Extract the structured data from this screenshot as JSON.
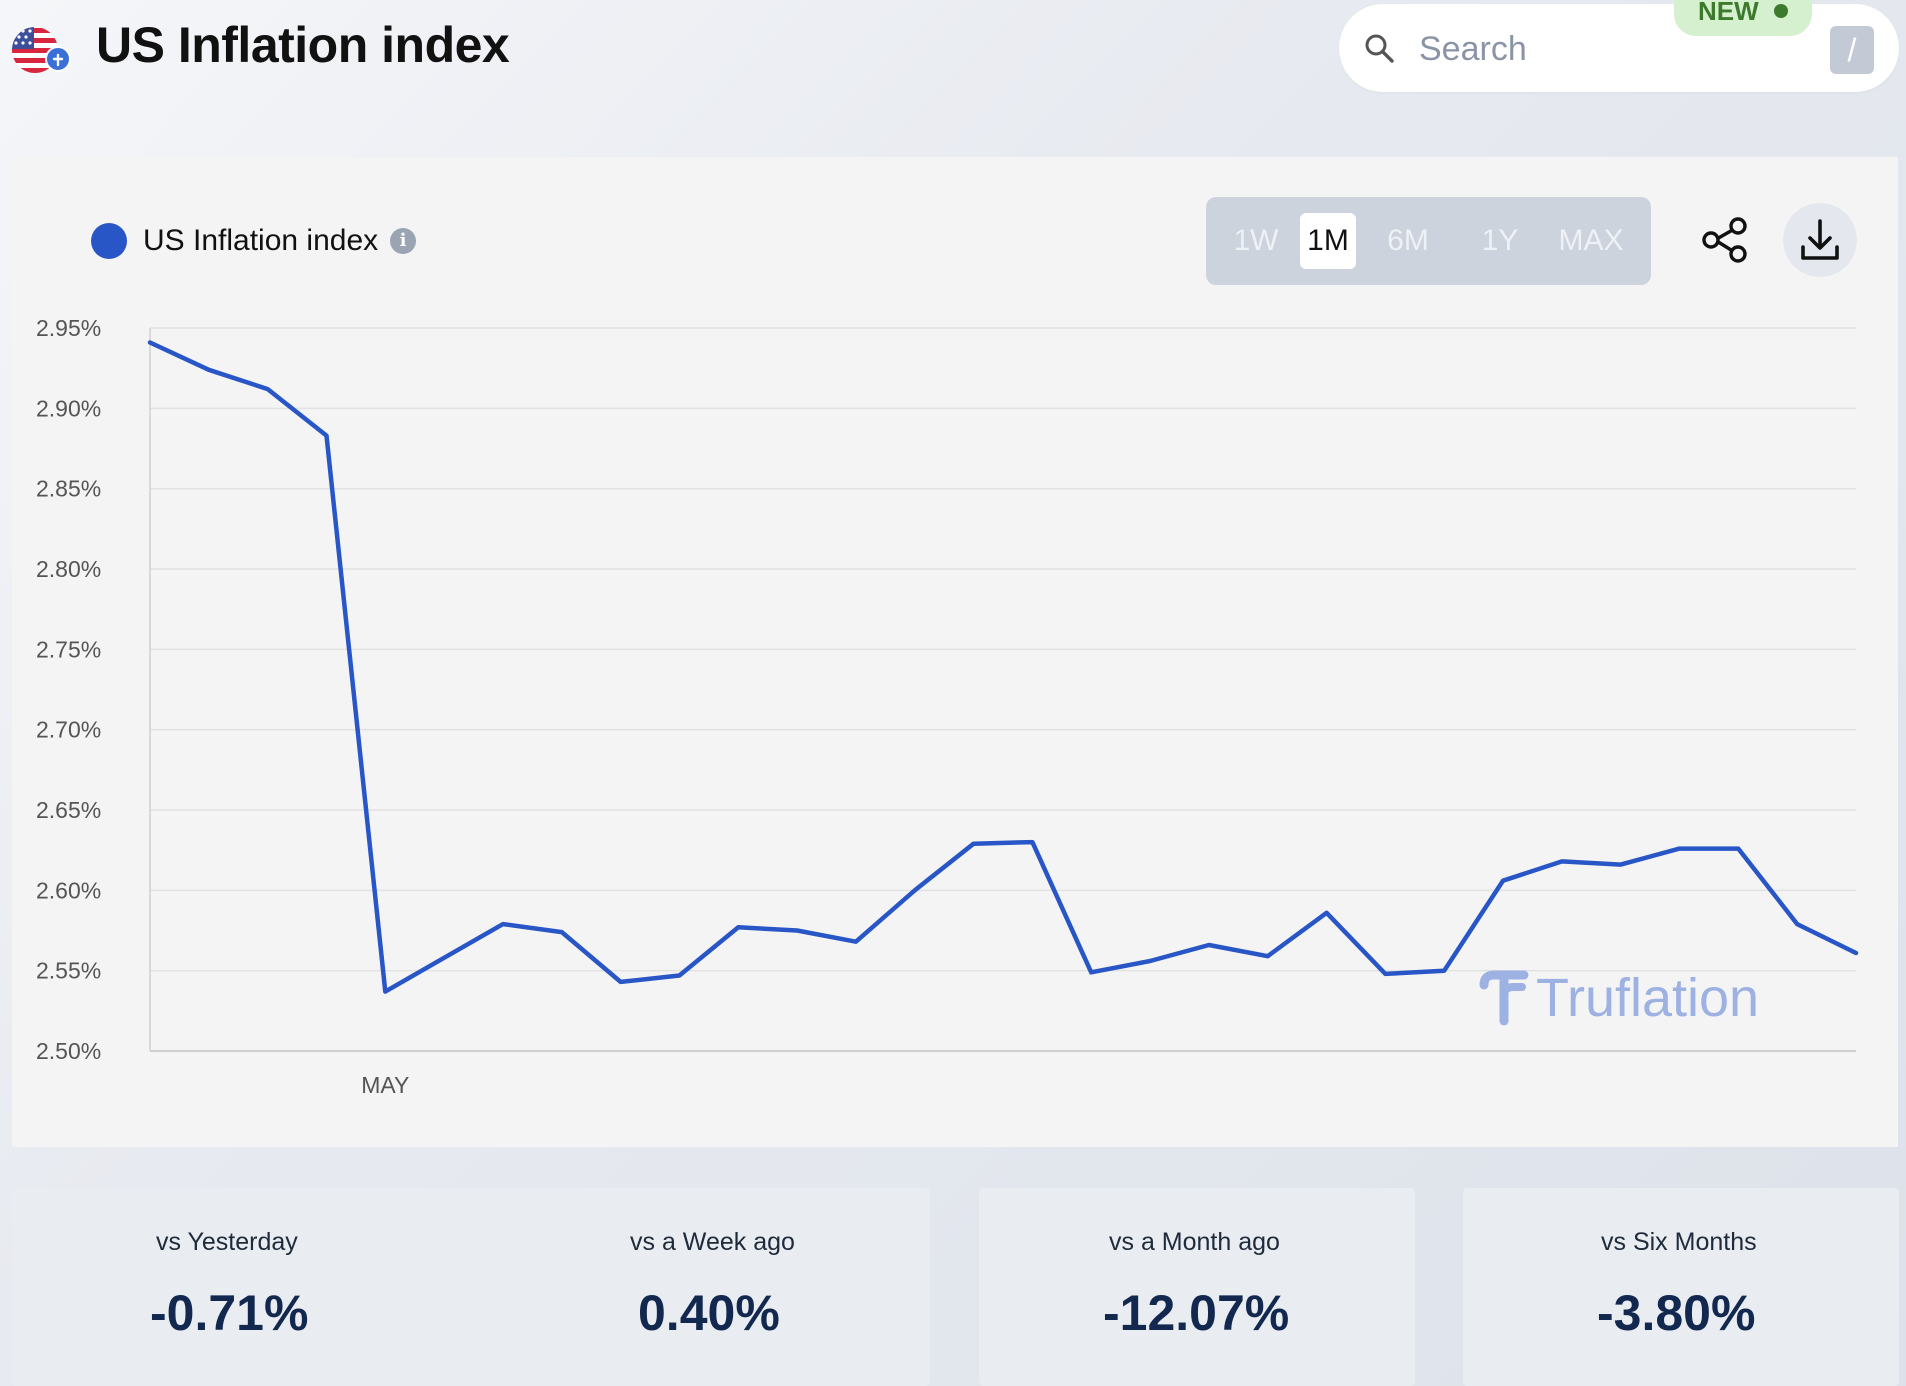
{
  "header": {
    "title": "US Inflation index",
    "flag_icon": "us-flag-with-badge-icon"
  },
  "search": {
    "placeholder": "Search",
    "shortcut_key": "/",
    "badge": "NEW"
  },
  "legend": {
    "label": "US Inflation index",
    "info_icon": "info-icon",
    "color": "#2956c7"
  },
  "range_buttons": [
    {
      "label": "1W",
      "active": false
    },
    {
      "label": "1M",
      "active": true
    },
    {
      "label": "6M",
      "active": false
    },
    {
      "label": "1Y",
      "active": false
    },
    {
      "label": "MAX",
      "active": false
    }
  ],
  "actions": {
    "share_icon": "share-icon",
    "download_icon": "download-icon"
  },
  "watermark": "Truflation",
  "chart_data": {
    "type": "line",
    "y_ticks": [
      "2.95%",
      "2.90%",
      "2.85%",
      "2.80%",
      "2.75%",
      "2.70%",
      "2.65%",
      "2.60%",
      "2.55%",
      "2.50%"
    ],
    "ylim": [
      2.5,
      2.95
    ],
    "x_tick_labels": [
      "MAY"
    ],
    "grid": true,
    "series": [
      {
        "color": "#2956c7",
        "values": [
          2.941,
          2.924,
          2.912,
          2.883,
          2.537,
          2.558,
          2.579,
          2.574,
          2.543,
          2.547,
          2.577,
          2.575,
          2.568,
          2.6,
          2.629,
          2.63,
          2.549,
          2.556,
          2.566,
          2.559,
          2.586,
          2.548,
          2.55,
          2.606,
          2.618,
          2.616,
          2.626,
          2.626,
          2.579,
          2.561
        ]
      }
    ]
  },
  "stats": [
    {
      "label": "vs Yesterday",
      "value": "-0.71%"
    },
    {
      "label": "vs a Week ago",
      "value": "0.40%"
    },
    {
      "label": "vs a Month ago",
      "value": "-12.07%"
    },
    {
      "label": "vs Six Months",
      "value": "-3.80%"
    }
  ]
}
